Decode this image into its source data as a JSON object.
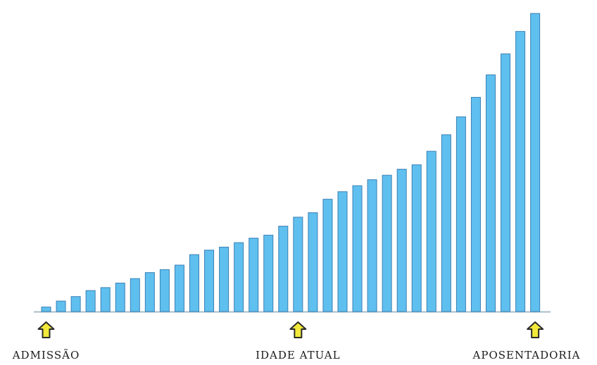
{
  "chart_data": {
    "type": "bar",
    "title": "",
    "xlabel": "",
    "ylabel": "",
    "values": [
      3,
      7,
      10,
      14,
      16,
      19,
      22,
      26,
      28,
      31,
      38,
      41,
      43,
      46,
      49,
      51,
      57,
      63,
      66,
      75,
      80,
      84,
      88,
      91,
      95,
      98,
      107,
      118,
      130,
      143,
      158,
      172,
      187,
      199
    ],
    "ylim": [
      0,
      200
    ],
    "bar_color": "#5fc0ef",
    "bar_edge_color": "#3a7fb5",
    "axis_color": "#a7bdcc",
    "markers": [
      {
        "label": "ADMISSÃO",
        "bar_index": 0
      },
      {
        "label": "IDADE ATUAL",
        "bar_index": 17
      },
      {
        "label": "APOSENTADORIA",
        "bar_index": 33
      }
    ],
    "marker_color": "#f2e93a",
    "marker_edge_color": "#2a2a2a"
  }
}
